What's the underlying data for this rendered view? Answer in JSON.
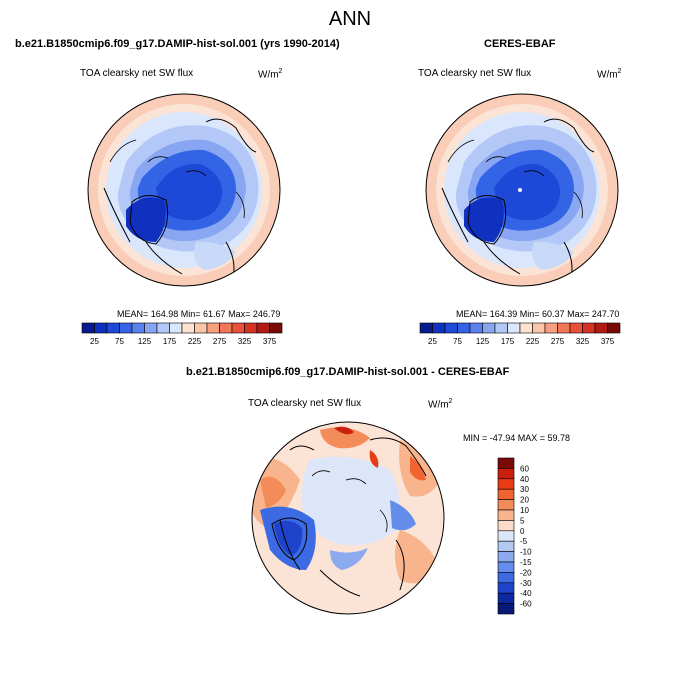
{
  "title": "ANN",
  "panels": [
    {
      "case_title": "b.e21.B1850cmip6.f09_g17.DAMIP-hist-sol.001 (yrs 1990-2014)",
      "variable": "TOA clearsky net SW flux",
      "units_base": "W/m",
      "units_exp": "2",
      "stats": "MEAN= 164.98  Min=  61.67  Max= 246.79"
    },
    {
      "case_title": "CERES-EBAF",
      "variable": "TOA clearsky net SW flux",
      "units_base": "W/m",
      "units_exp": "2",
      "stats": "MEAN= 164.39  Min=  60.37  Max= 247.70"
    },
    {
      "case_title": "b.e21.B1850cmip6.f09_g17.DAMIP-hist-sol.001 - CERES-EBAF",
      "variable": "TOA clearsky net SW flux",
      "units_base": "W/m",
      "units_exp": "2",
      "stats": "MIN = -47.94  MAX =  59.78"
    }
  ],
  "abs_colorbar": {
    "labels": [
      "25",
      "75",
      "125",
      "175",
      "225",
      "275",
      "325",
      "375"
    ],
    "colors": [
      "#0a1a8c",
      "#1030c0",
      "#1e48d8",
      "#3464e6",
      "#5a82ec",
      "#88a6f2",
      "#b4c8f8",
      "#dae6fc",
      "#fde2d0",
      "#fbc6aa",
      "#f6a080",
      "#f07858",
      "#e8503a",
      "#d43424",
      "#b01c14",
      "#7a0a08"
    ]
  },
  "diff_colorbar": {
    "labels": [
      "60",
      "40",
      "30",
      "20",
      "10",
      "5",
      "0",
      "-5",
      "-10",
      "-15",
      "-20",
      "-30",
      "-40",
      "-60"
    ],
    "colors": [
      "#7a0a08",
      "#c8200c",
      "#e83c14",
      "#f06432",
      "#f48c5a",
      "#f8b48c",
      "#fcdcc8",
      "#dce6f8",
      "#b4c8f4",
      "#8caaf0",
      "#648cea",
      "#3c6ae2",
      "#1e44cc",
      "#0c28a0",
      "#061878"
    ]
  },
  "colors": {
    "map_ocean_outer": "#f9cdb7",
    "map_mid": "#c9daf9",
    "map_inner": "#2e58e0",
    "diff_background": "#fbe3d6"
  }
}
